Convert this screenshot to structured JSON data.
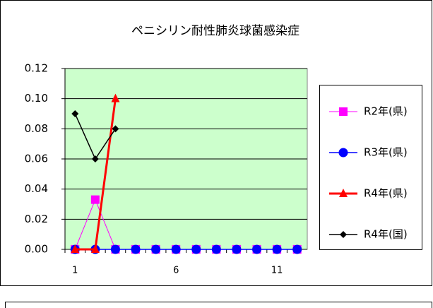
{
  "chart_data": {
    "type": "line",
    "title": "ペニシリン耐性肺炎球菌感染症",
    "categories": [
      "1",
      null,
      null,
      null,
      null,
      "6",
      null,
      null,
      null,
      null,
      "11",
      null
    ],
    "series": [
      {
        "name": "R2年(県)",
        "color": "#ff00ff",
        "marker": "square",
        "values": [
          0,
          0.033,
          0,
          0,
          0,
          0,
          0,
          0,
          0,
          0,
          0,
          0
        ]
      },
      {
        "name": "R3年(県)",
        "color": "#0000ff",
        "marker": "circle",
        "values": [
          0,
          0,
          0,
          0,
          0,
          0,
          0,
          0,
          0,
          0,
          0,
          0
        ]
      },
      {
        "name": "R4年(県)",
        "color": "#ff0000",
        "marker": "triangle",
        "values": [
          0,
          0,
          0.1,
          null,
          null,
          null,
          null,
          null,
          null,
          null,
          null,
          null
        ]
      },
      {
        "name": "R4年(国)",
        "color": "#000000",
        "marker": "diamond",
        "values": [
          0.09,
          0.06,
          0.08,
          null,
          null,
          null,
          null,
          null,
          null,
          null,
          null,
          null
        ]
      }
    ],
    "ylim": [
      0,
      0.12
    ],
    "yticks": [
      {
        "value": 0,
        "label": "0.00"
      },
      {
        "value": 0.02,
        "label": "0.02"
      },
      {
        "value": 0.04,
        "label": "0.04"
      },
      {
        "value": 0.06,
        "label": "0.06"
      },
      {
        "value": 0.08,
        "label": "0.08"
      },
      {
        "value": 0.1,
        "label": "0.10"
      },
      {
        "value": 0.12,
        "label": "0.12"
      }
    ],
    "grid": true,
    "plot_background": "#ccffcc",
    "legend": "right"
  }
}
